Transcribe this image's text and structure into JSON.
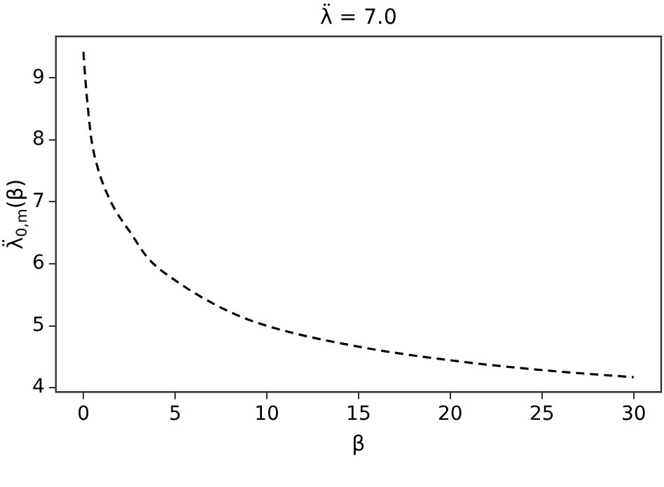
{
  "chart_data": {
    "type": "line",
    "title": "λ̈ = 7.0",
    "xlabel": "β",
    "ylabel": "λ̈$_{0,m}$(β)",
    "x": [
      0,
      0.1,
      0.25,
      0.44,
      0.78,
      1.5,
      2.64,
      3.5,
      4.97,
      7.8,
      10,
      15.07,
      20.1,
      25.2,
      30
    ],
    "series": [
      {
        "color": "#000000",
        "values": [
          9.42,
          9.0,
          8.5,
          8.0,
          7.55,
          7.0,
          6.47,
          6.1,
          5.74,
          5.25,
          5.0,
          4.66,
          4.44,
          4.28,
          4.17
        ]
      }
    ],
    "xlim": [
      -1.5,
      31.5
    ],
    "xticks": [
      0,
      5,
      10,
      15,
      20,
      25,
      30
    ],
    "ylim": [
      3.93,
      9.67
    ],
    "yticks": [
      4,
      5,
      6,
      7,
      8,
      9
    ],
    "line_style": "dashed",
    "marker": "none"
  }
}
